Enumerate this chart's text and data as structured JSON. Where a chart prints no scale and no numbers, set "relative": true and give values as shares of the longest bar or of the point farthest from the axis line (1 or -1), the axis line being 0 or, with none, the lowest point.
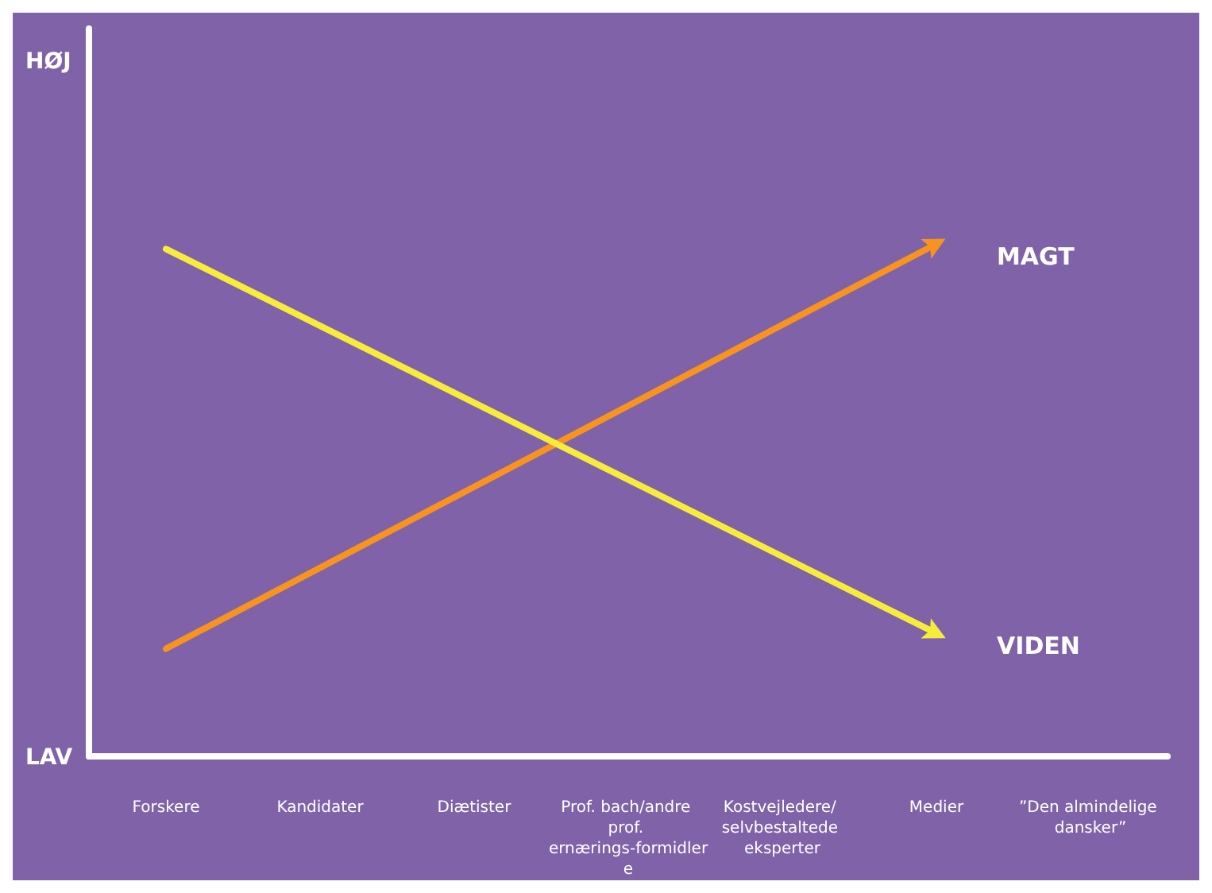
{
  "chart_data": {
    "type": "line",
    "relative": true,
    "categories": [
      "Forskere",
      "Kandidater",
      "Diætister",
      "Prof. bach/andre prof. ernærings-formidlere",
      "Kostvejledere/ selvbestaltede eksperter",
      "Medier",
      "”Den almindelige dansker”"
    ],
    "series": [
      {
        "name": "MAGT",
        "color": "#f7931e",
        "values": [
          0.21,
          null,
          null,
          null,
          null,
          1.0,
          null
        ]
      },
      {
        "name": "VIDEN",
        "color": "#f7ec3c",
        "values": [
          0.99,
          null,
          null,
          null,
          null,
          0.24,
          null
        ]
      }
    ],
    "annotations": [
      "HØJ",
      "LAV"
    ],
    "grid": false,
    "legend": false,
    "line_style": "solid"
  }
}
